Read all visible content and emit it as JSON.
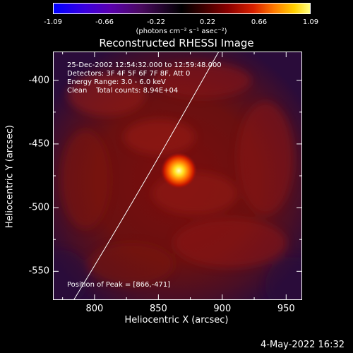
{
  "colorbar": {
    "tick_labels": [
      "-1.09",
      "-0.66",
      "-0.22",
      "0.22",
      "0.66",
      "1.09"
    ],
    "units": "(photons cm⁻² s⁻¹ asec⁻²)",
    "range": [
      -1.09,
      1.09
    ]
  },
  "chart_data": {
    "type": "heatmap",
    "title": "Reconstructed RHESSI Image",
    "xlabel": "Heliocentric X (arcsec)",
    "ylabel": "Heliocentric Y (arcsec)",
    "xlim": [
      768,
      962
    ],
    "ylim": [
      -572,
      -378
    ],
    "xticks": [
      800,
      850,
      900,
      950
    ],
    "yticks": [
      -400,
      -450,
      -500,
      -550
    ],
    "xtick_labels": [
      "800",
      "850",
      "900",
      "950"
    ],
    "ytick_labels": [
      "-400",
      "-450",
      "-500",
      "-550"
    ],
    "peak": {
      "x": 866,
      "y": -471
    },
    "limb_curve": [
      [
        784,
        -572
      ],
      [
        840,
        -480
      ],
      [
        873,
        -420
      ],
      [
        897,
        -378
      ]
    ],
    "info_lines": [
      "25-Dec-2002 12:54:32.000 to 12:59:48.000",
      "Detectors: 3F 4F 5F 6F 7F 8F, Att 0",
      "Energy Range: 3.0 - 6.0 keV",
      "Clean    Total counts: 8.94E+04"
    ],
    "peak_label": "Position of Peak = [866,-471]"
  },
  "footer": {
    "timestamp": "4-May-2022 16:32"
  }
}
